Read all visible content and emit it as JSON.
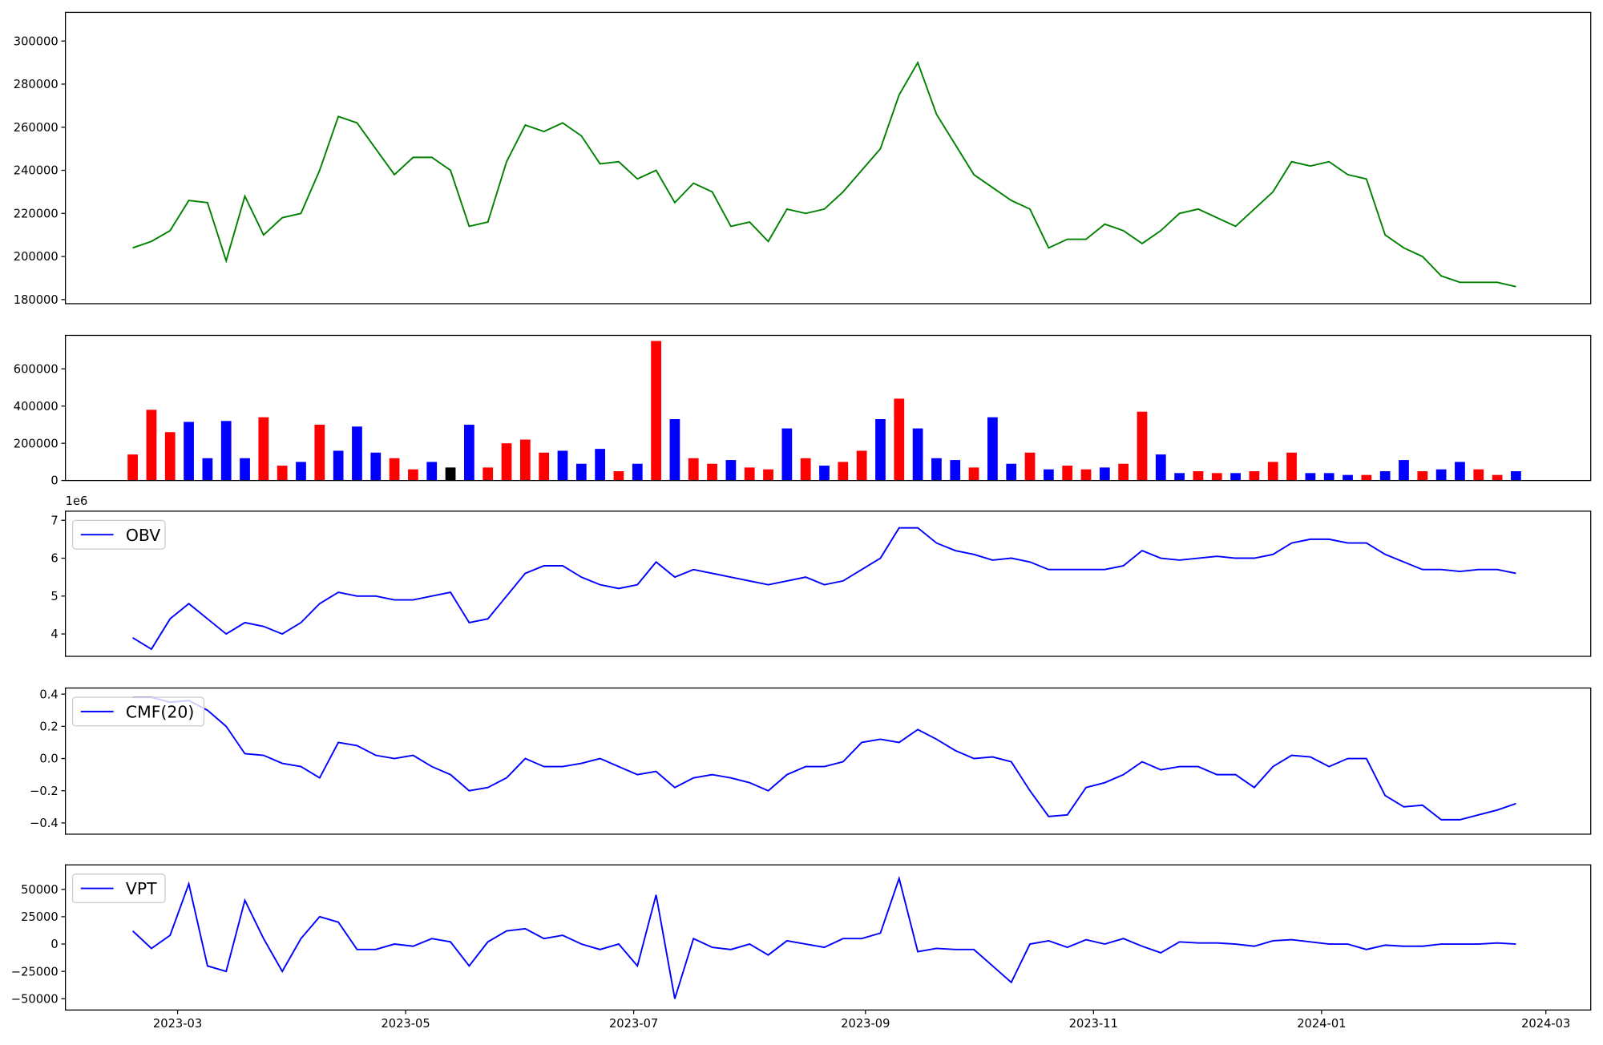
{
  "chart_data": [
    {
      "type": "line",
      "series": [
        {
          "color": "#008000",
          "values": [
            204000,
            207000,
            212000,
            226000,
            225000,
            198000,
            228000,
            210000,
            218000,
            220000,
            240000,
            265000,
            262000,
            250000,
            238000,
            246000,
            246000,
            240000,
            214000,
            216000,
            244000,
            261000,
            258000,
            262000,
            256000,
            243000,
            244000,
            236000,
            240000,
            225000,
            234000,
            230000,
            214000,
            216000,
            207000,
            222000,
            220000,
            222000,
            230000,
            240000,
            250000,
            275000,
            290000,
            266000,
            252000,
            238000,
            232000,
            226000,
            222000,
            204000,
            208000,
            208000,
            215000,
            212000,
            206000,
            212000,
            220000,
            222000,
            218000,
            214000,
            222000,
            230000,
            244000,
            242000,
            244000,
            238000,
            236000,
            210000,
            204000,
            200000,
            191000,
            188000,
            188000,
            188000,
            186000
          ]
        }
      ],
      "x": [
        47,
        52,
        57,
        62,
        67,
        72,
        77,
        82,
        87,
        92,
        97,
        102,
        107,
        112,
        117,
        122,
        127,
        132,
        137,
        142,
        147,
        152,
        157,
        162,
        167,
        172,
        177,
        182,
        187,
        192,
        197,
        202,
        207,
        212,
        217,
        222,
        227,
        232,
        237,
        242,
        247,
        252,
        257,
        262,
        267,
        272,
        277,
        282,
        287,
        292,
        297,
        302,
        307,
        312,
        317,
        322,
        327,
        332,
        337,
        342,
        347,
        352,
        357,
        362,
        367,
        372,
        377,
        382,
        387,
        392,
        397,
        402,
        407,
        412,
        417
      ],
      "xlim": [
        29,
        437
      ],
      "ylim": [
        178100,
        313300
      ],
      "yticks": [
        180000,
        200000,
        220000,
        240000,
        260000,
        280000,
        300000
      ]
    },
    {
      "type": "bar",
      "values": [
        140000,
        380000,
        260000,
        315000,
        120000,
        320000,
        120000,
        340000,
        80000,
        100000,
        300000,
        160000,
        290000,
        150000,
        120000,
        60000,
        100000,
        70000,
        300000,
        70000,
        200000,
        220000,
        150000,
        160000,
        90000,
        170000,
        50000,
        90000,
        750000,
        330000,
        120000,
        90000,
        110000,
        70000,
        60000,
        280000,
        120000,
        80000,
        100000,
        160000,
        330000,
        440000,
        280000,
        120000,
        110000,
        70000,
        340000,
        90000,
        150000,
        60000,
        80000,
        60000,
        70000,
        90000,
        370000,
        140000,
        40000,
        50000,
        40000,
        40000,
        50000,
        100000,
        150000,
        40000,
        40000,
        30000,
        30000,
        50000,
        110000,
        50000,
        60000,
        100000,
        60000,
        30000,
        50000
      ],
      "colors": [
        "red",
        "red",
        "red",
        "blue",
        "blue",
        "blue",
        "blue",
        "red",
        "red",
        "blue",
        "red",
        "blue",
        "blue",
        "blue",
        "red",
        "red",
        "blue",
        "black",
        "blue",
        "red",
        "red",
        "red",
        "red",
        "blue",
        "blue",
        "blue",
        "red",
        "blue",
        "red",
        "blue",
        "red",
        "red",
        "blue",
        "red",
        "red",
        "blue",
        "red",
        "blue",
        "red",
        "red",
        "blue",
        "red",
        "blue",
        "blue",
        "blue",
        "red",
        "blue",
        "blue",
        "red",
        "blue",
        "red",
        "red",
        "blue",
        "red",
        "red",
        "blue",
        "blue",
        "red",
        "red",
        "blue",
        "red",
        "red",
        "red",
        "blue",
        "blue",
        "blue",
        "red",
        "blue",
        "blue",
        "red",
        "blue",
        "blue",
        "red",
        "red",
        "blue"
      ],
      "x": [
        47,
        52,
        57,
        62,
        67,
        72,
        77,
        82,
        87,
        92,
        97,
        102,
        107,
        112,
        117,
        122,
        127,
        132,
        137,
        142,
        147,
        152,
        157,
        162,
        167,
        172,
        177,
        182,
        187,
        192,
        197,
        202,
        207,
        212,
        217,
        222,
        227,
        232,
        237,
        242,
        247,
        252,
        257,
        262,
        267,
        272,
        277,
        282,
        287,
        292,
        297,
        302,
        307,
        312,
        317,
        322,
        327,
        332,
        337,
        342,
        347,
        352,
        357,
        362,
        367,
        372,
        377,
        382,
        387,
        392,
        397,
        402,
        407,
        412,
        417
      ],
      "xlim": [
        29,
        437
      ],
      "ylim": [
        0,
        780000
      ],
      "yticks": [
        0,
        200000,
        400000,
        600000
      ]
    },
    {
      "type": "line",
      "offset_text": "1e6",
      "legend": "upper left",
      "series": [
        {
          "name": "OBV",
          "color": "#0000ff",
          "values": [
            3.9,
            3.6,
            4.4,
            4.8,
            4.4,
            4.0,
            4.3,
            4.2,
            4.0,
            4.3,
            4.8,
            5.1,
            5.0,
            5.0,
            4.9,
            4.9,
            5.0,
            5.1,
            4.3,
            4.4,
            5.0,
            5.6,
            5.8,
            5.8,
            5.5,
            5.3,
            5.2,
            5.3,
            5.9,
            5.5,
            5.7,
            5.6,
            5.5,
            5.4,
            5.3,
            5.4,
            5.5,
            5.3,
            5.4,
            5.7,
            6.0,
            6.8,
            6.8,
            6.4,
            6.2,
            6.1,
            5.95,
            6.0,
            5.9,
            5.7,
            5.7,
            5.7,
            5.7,
            5.8,
            6.2,
            6.0,
            5.95,
            6.0,
            6.05,
            6.0,
            6.0,
            6.1,
            6.4,
            6.5,
            6.5,
            6.4,
            6.4,
            6.1,
            5.9,
            5.7,
            5.7,
            5.65,
            5.7,
            5.7,
            5.6
          ]
        }
      ],
      "x": [
        47,
        52,
        57,
        62,
        67,
        72,
        77,
        82,
        87,
        92,
        97,
        102,
        107,
        112,
        117,
        122,
        127,
        132,
        137,
        142,
        147,
        152,
        157,
        162,
        167,
        172,
        177,
        182,
        187,
        192,
        197,
        202,
        207,
        212,
        217,
        222,
        227,
        232,
        237,
        242,
        247,
        252,
        257,
        262,
        267,
        272,
        277,
        282,
        287,
        292,
        297,
        302,
        307,
        312,
        317,
        322,
        327,
        332,
        337,
        342,
        347,
        352,
        357,
        362,
        367,
        372,
        377,
        382,
        387,
        392,
        397,
        402,
        407,
        412,
        417
      ],
      "xlim": [
        29,
        437
      ],
      "ylim": [
        3.41,
        7.24
      ],
      "yticks": [
        4,
        5,
        6,
        7
      ]
    },
    {
      "type": "line",
      "legend": "upper left",
      "series": [
        {
          "name": "CMF(20)",
          "color": "#0000ff",
          "values": [
            0.38,
            0.38,
            0.35,
            0.36,
            0.3,
            0.2,
            0.03,
            0.02,
            -0.03,
            -0.05,
            -0.12,
            0.1,
            0.08,
            0.02,
            0.0,
            0.02,
            -0.05,
            -0.1,
            -0.2,
            -0.18,
            -0.12,
            0.0,
            -0.05,
            -0.05,
            -0.03,
            0.0,
            -0.05,
            -0.1,
            -0.08,
            -0.18,
            -0.12,
            -0.1,
            -0.12,
            -0.15,
            -0.2,
            -0.1,
            -0.05,
            -0.05,
            -0.02,
            0.1,
            0.12,
            0.1,
            0.18,
            0.12,
            0.05,
            0.0,
            0.01,
            -0.02,
            -0.2,
            -0.36,
            -0.35,
            -0.18,
            -0.15,
            -0.1,
            -0.02,
            -0.07,
            -0.05,
            -0.05,
            -0.1,
            -0.1,
            -0.18,
            -0.05,
            0.02,
            0.01,
            -0.05,
            0.0,
            0.0,
            -0.23,
            -0.3,
            -0.29,
            -0.38,
            -0.38,
            -0.35,
            -0.32,
            -0.28
          ]
        }
      ],
      "x": [
        47,
        52,
        57,
        62,
        67,
        72,
        77,
        82,
        87,
        92,
        97,
        102,
        107,
        112,
        117,
        122,
        127,
        132,
        137,
        142,
        147,
        152,
        157,
        162,
        167,
        172,
        177,
        182,
        187,
        192,
        197,
        202,
        207,
        212,
        217,
        222,
        227,
        232,
        237,
        242,
        247,
        252,
        257,
        262,
        267,
        272,
        277,
        282,
        287,
        292,
        297,
        302,
        307,
        312,
        317,
        322,
        327,
        332,
        337,
        342,
        347,
        352,
        357,
        362,
        367,
        372,
        377,
        382,
        387,
        392,
        397,
        402,
        407,
        412,
        417
      ],
      "xlim": [
        29,
        437
      ],
      "ylim": [
        -0.47,
        0.438
      ],
      "yticks": [
        {
          "value": -0.4,
          "label": "−0.4"
        },
        {
          "value": -0.2,
          "label": "−0.2"
        },
        {
          "value": 0,
          "label": "0.0"
        },
        0.2,
        0.4
      ]
    },
    {
      "type": "line",
      "legend": "upper left",
      "series": [
        {
          "name": "VPT",
          "color": "#0000ff",
          "values": [
            12000,
            -4000,
            8000,
            55000,
            -20000,
            -25000,
            40000,
            5000,
            -25000,
            5000,
            25000,
            20000,
            -5000,
            -5000,
            0,
            -2000,
            5000,
            2000,
            -20000,
            2000,
            12000,
            14000,
            5000,
            8000,
            0,
            -5000,
            0,
            -20000,
            45000,
            -50000,
            5000,
            -3000,
            -5000,
            0,
            -10000,
            3000,
            0,
            -3000,
            5000,
            5000,
            10000,
            60000,
            -7000,
            -4000,
            -5000,
            -5000,
            -20000,
            -35000,
            0,
            3000,
            -3000,
            4000,
            0,
            5000,
            -2000,
            -8000,
            2000,
            1000,
            1000,
            0,
            -2000,
            3000,
            4000,
            2000,
            0,
            0,
            -5000,
            -1000,
            -2000,
            -2000,
            0,
            0,
            0,
            1000,
            0
          ]
        }
      ],
      "x": [
        47,
        52,
        57,
        62,
        67,
        72,
        77,
        82,
        87,
        92,
        97,
        102,
        107,
        112,
        117,
        122,
        127,
        132,
        137,
        142,
        147,
        152,
        157,
        162,
        167,
        172,
        177,
        182,
        187,
        192,
        197,
        202,
        207,
        212,
        217,
        222,
        227,
        232,
        237,
        242,
        247,
        252,
        257,
        262,
        267,
        272,
        277,
        282,
        287,
        292,
        297,
        302,
        307,
        312,
        317,
        322,
        327,
        332,
        337,
        342,
        347,
        352,
        357,
        362,
        367,
        372,
        377,
        382,
        387,
        392,
        397,
        402,
        407,
        412,
        417
      ],
      "xlim": [
        29,
        437
      ],
      "ylim": [
        -60300,
        72400
      ],
      "yticks": [
        {
          "value": -50000,
          "label": "−50000"
        },
        {
          "value": -25000,
          "label": "−25000"
        },
        0,
        25000,
        50000
      ],
      "xticks": [
        {
          "value": 59,
          "label": "2023-03"
        },
        {
          "value": 120,
          "label": "2023-05"
        },
        {
          "value": 181,
          "label": "2023-07"
        },
        {
          "value": 243,
          "label": "2023-09"
        },
        {
          "value": 304,
          "label": "2023-11"
        },
        {
          "value": 365,
          "label": "2024-01"
        },
        {
          "value": 425,
          "label": "2024-03"
        }
      ]
    }
  ]
}
